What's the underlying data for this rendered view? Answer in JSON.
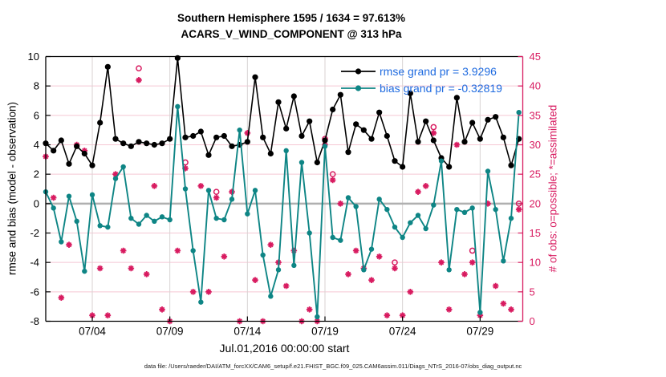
{
  "chart_data": {
    "type": "line",
    "title": "Southern Hemisphere 1595 / 1634 = 97.613%",
    "subtitle": "ACARS_V_WIND_COMPONENT @ 313 hPa",
    "xlabel": "Jul.01,2016 00:00:00 start",
    "ylabel_left": "rmse and bias (model - observation)",
    "ylabel_right": "# of obs: o=possible; *=assimilated",
    "footer_text": "data file: /Users/raeder/DAI/ATM_forcXX/CAM6_setup/f.e21.FHIST_BGC.f09_025.CAM6assim.011/Diags_NTrS_2016-07/obs_diag_output.nc",
    "x_domain_days": [
      0,
      30.75
    ],
    "x_ticks": [
      {
        "day": 3,
        "label": "07/04"
      },
      {
        "day": 8,
        "label": "07/09"
      },
      {
        "day": 13,
        "label": "07/14"
      },
      {
        "day": 18,
        "label": "07/19"
      },
      {
        "day": 23,
        "label": "07/24"
      },
      {
        "day": 28,
        "label": "07/29"
      }
    ],
    "ylim_left": [
      -8,
      10
    ],
    "yticks_left": [
      -8,
      -6,
      -4,
      -2,
      0,
      2,
      4,
      6,
      8,
      10
    ],
    "ylim_right": [
      0,
      45
    ],
    "yticks_right": [
      0,
      5,
      10,
      15,
      20,
      25,
      30,
      35,
      40,
      45
    ],
    "grid": true,
    "legend_position": "top-right-inside",
    "colors": {
      "rmse": "#000000",
      "bias": "#0e8585",
      "obs": "#d81b60",
      "legend_text": "#1f6be0",
      "grid_pink": "#f5c8d4",
      "grid_gray": "#d8d2d2",
      "zero_line": "#b0b0b0",
      "axis_left": "#000000",
      "axis_right": "#d81b60"
    },
    "x_days": [
      0,
      0.5,
      1,
      1.5,
      2,
      2.5,
      3,
      3.5,
      4,
      4.5,
      5,
      5.5,
      6,
      6.5,
      7,
      7.5,
      8,
      8.5,
      9,
      9.5,
      10,
      10.5,
      11,
      11.5,
      12,
      12.5,
      13,
      13.5,
      14,
      14.5,
      15,
      15.5,
      16,
      16.5,
      17,
      17.5,
      18,
      18.5,
      19,
      19.5,
      20,
      20.5,
      21,
      21.5,
      22,
      22.5,
      23,
      23.5,
      24,
      24.5,
      25,
      25.5,
      26,
      26.5,
      27,
      27.5,
      28,
      28.5,
      29,
      29.5,
      30,
      30.5
    ],
    "series": [
      {
        "name": "rmse",
        "legend_label": "rmse grand pr = 3.9296",
        "axis": "left",
        "marker": "filled-circle",
        "color": "#000000",
        "values": [
          4.1,
          3.6,
          4.3,
          2.7,
          3.9,
          3.4,
          2.6,
          5.5,
          9.3,
          4.4,
          4.1,
          3.9,
          4.2,
          4.1,
          4.0,
          4.1,
          4.4,
          9.9,
          4.5,
          4.6,
          4.9,
          3.3,
          4.5,
          4.6,
          3.9,
          4.0,
          4.2,
          8.6,
          4.5,
          3.4,
          6.9,
          5.1,
          7.3,
          4.6,
          5.6,
          2.8,
          4.3,
          6.4,
          7.4,
          3.5,
          5.4,
          5.0,
          4.4,
          6.2,
          4.6,
          2.9,
          2.5,
          7.5,
          4.2,
          5.6,
          4.3,
          3.1,
          2.5,
          7.2,
          4.2,
          5.5,
          4.4,
          5.7,
          5.9,
          4.5,
          2.6,
          4.4
        ]
      },
      {
        "name": "bias",
        "legend_label": "bias grand pr = -0.32819",
        "axis": "left",
        "marker": "filled-circle",
        "color": "#0e8585",
        "values": [
          0.8,
          -0.3,
          -2.6,
          0.5,
          -1.2,
          -4.6,
          0.6,
          -1.5,
          -1.6,
          1.7,
          2.5,
          -1.0,
          -1.4,
          -0.8,
          -1.2,
          -0.9,
          -1.1,
          6.6,
          1.0,
          -3.2,
          -6.7,
          0.9,
          -1.0,
          -1.1,
          0.3,
          5.0,
          -0.7,
          0.9,
          -3.5,
          -6.3,
          -4.5,
          3.6,
          -4.2,
          2.8,
          -2.0,
          -7.7,
          3.9,
          -2.3,
          -2.5,
          0.4,
          -0.2,
          -4.5,
          -3.1,
          0.3,
          -0.4,
          -1.6,
          -2.3,
          -1.3,
          -0.8,
          -1.7,
          -0.1,
          2.9,
          -4.5,
          -0.4,
          -0.6,
          -0.3,
          -7.4,
          2.2,
          -0.4,
          -3.9,
          -1.0,
          6.2
        ]
      },
      {
        "name": "possible_obs",
        "legend_label": null,
        "axis": "right",
        "marker": "open-circle",
        "color": "#d81b60",
        "values": [
          28,
          21,
          4,
          13,
          30,
          29,
          1,
          9,
          1,
          25,
          12,
          9,
          43,
          8,
          23,
          2,
          0,
          12,
          27,
          5,
          23,
          5,
          22,
          11,
          22,
          0,
          32,
          7,
          0,
          13,
          10,
          6,
          12,
          0,
          2,
          0,
          31,
          25,
          20,
          8,
          12,
          9,
          7,
          11,
          1,
          10,
          1,
          5,
          22,
          23,
          33,
          10,
          2,
          30,
          8,
          12,
          1,
          20,
          6,
          3,
          2,
          20
        ]
      },
      {
        "name": "assimilated_obs",
        "legend_label": null,
        "axis": "right",
        "marker": "asterisk",
        "color": "#d81b60",
        "values": [
          28,
          21,
          4,
          13,
          30,
          29,
          1,
          9,
          1,
          25,
          12,
          9,
          41,
          8,
          23,
          2,
          0,
          12,
          26,
          5,
          23,
          5,
          21,
          11,
          22,
          0,
          32,
          7,
          0,
          13,
          10,
          6,
          12,
          0,
          2,
          0,
          30,
          24,
          20,
          8,
          12,
          9,
          7,
          11,
          1,
          9,
          1,
          5,
          22,
          23,
          32,
          10,
          2,
          30,
          8,
          10,
          1,
          20,
          6,
          3,
          2,
          19
        ]
      }
    ]
  }
}
